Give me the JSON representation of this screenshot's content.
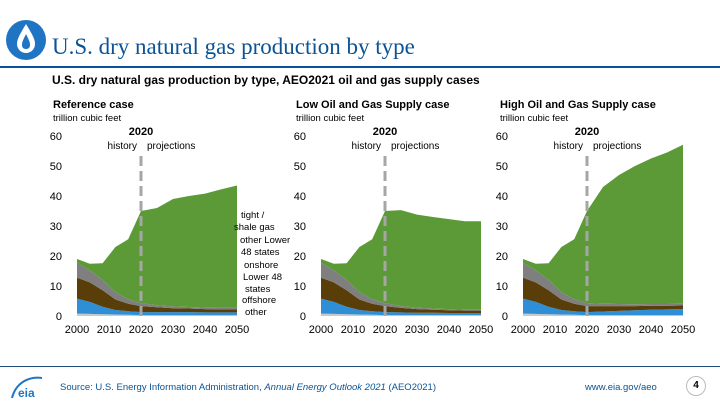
{
  "header": {
    "title": "U.S. dry natural gas production by type",
    "subtitle": "U.S. dry natural gas production by type, AEO2021 oil and gas supply cases"
  },
  "footer": {
    "source_prefix": "Source: U.S. Energy Information Administration, ",
    "source_italic": "Annual Energy Outlook 2021",
    "source_suffix": " (AEO2021)",
    "site": "www.eia.gov/aeo",
    "page": "4"
  },
  "colors": {
    "title": "#0b5394",
    "tight_shale": "#5b9a36",
    "other_lower48": "#7f7f7f",
    "onshore": "#5a3e0a",
    "offshore": "#2f8fd6",
    "other": "#c9c9c9",
    "divider": "#a6a6a6"
  },
  "legend": {
    "tight_shale": "tight / shale gas",
    "other_lower48": "other Lower 48 states onshore",
    "onshore_lower48": "Lower 48 states offshore",
    "other": "other"
  },
  "chart_data": [
    {
      "type": "area",
      "title": "Reference case",
      "ylabel": "trillion cubic feet",
      "ylim": [
        0,
        60
      ],
      "yticks": [
        "0",
        "10",
        "20",
        "30",
        "40",
        "50",
        "60"
      ],
      "xticks": [
        "2000",
        "2010",
        "2020",
        "2030",
        "2040",
        "2050"
      ],
      "divider_year": "2020",
      "history_label": "history",
      "projections_label": "projections",
      "x": [
        2000,
        2004,
        2008,
        2012,
        2016,
        2020,
        2025,
        2030,
        2035,
        2040,
        2045,
        2050
      ],
      "series": [
        {
          "key": "other",
          "values": [
            0.8,
            0.7,
            0.6,
            0.5,
            0.4,
            0.3,
            0.3,
            0.3,
            0.3,
            0.3,
            0.3,
            0.3
          ]
        },
        {
          "key": "offshore",
          "values": [
            5.0,
            4.0,
            2.5,
            1.5,
            1.2,
            1.0,
            1.0,
            1.0,
            1.0,
            0.9,
            0.9,
            0.9
          ]
        },
        {
          "key": "onshore",
          "values": [
            7.0,
            6.5,
            5.5,
            3.5,
            2.5,
            2.0,
            1.6,
            1.3,
            1.2,
            1.1,
            1.0,
            1.0
          ]
        },
        {
          "key": "other_lower48",
          "values": [
            5.0,
            4.0,
            3.5,
            2.5,
            1.5,
            1.0,
            0.7,
            0.6,
            0.5,
            0.5,
            0.5,
            0.5
          ]
        },
        {
          "key": "tight_shale",
          "values": [
            1.2,
            2.2,
            5.5,
            15.0,
            20.0,
            30.7,
            32.4,
            35.8,
            37.0,
            38.0,
            39.5,
            40.8
          ]
        }
      ]
    },
    {
      "type": "area",
      "title": "Low Oil and Gas Supply case",
      "ylabel": "trillion cubic feet",
      "ylim": [
        0,
        60
      ],
      "yticks": [
        "0",
        "10",
        "20",
        "30",
        "40",
        "50",
        "60"
      ],
      "xticks": [
        "2000",
        "2010",
        "2020",
        "2030",
        "2040",
        "2050"
      ],
      "divider_year": "2020",
      "history_label": "history",
      "projections_label": "projections",
      "x": [
        2000,
        2004,
        2008,
        2012,
        2016,
        2020,
        2025,
        2030,
        2035,
        2040,
        2045,
        2050
      ],
      "series": [
        {
          "key": "other",
          "values": [
            0.8,
            0.7,
            0.6,
            0.5,
            0.4,
            0.3,
            0.3,
            0.3,
            0.3,
            0.3,
            0.3,
            0.3
          ]
        },
        {
          "key": "offshore",
          "values": [
            5.0,
            4.0,
            2.5,
            1.5,
            1.2,
            1.0,
            0.9,
            0.8,
            0.8,
            0.7,
            0.7,
            0.7
          ]
        },
        {
          "key": "onshore",
          "values": [
            7.0,
            6.5,
            5.5,
            3.5,
            2.5,
            2.0,
            1.5,
            1.2,
            1.0,
            0.9,
            0.8,
            0.8
          ]
        },
        {
          "key": "other_lower48",
          "values": [
            5.0,
            4.0,
            3.5,
            2.5,
            1.5,
            1.0,
            0.6,
            0.5,
            0.4,
            0.4,
            0.3,
            0.3
          ]
        },
        {
          "key": "tight_shale",
          "values": [
            1.2,
            2.2,
            5.5,
            15.0,
            20.0,
            30.7,
            32.0,
            31.0,
            30.5,
            30.0,
            29.5,
            29.5
          ]
        }
      ]
    },
    {
      "type": "area",
      "title": "High Oil and Gas Supply case",
      "ylabel": "trillion cubic feet",
      "ylim": [
        0,
        60
      ],
      "yticks": [
        "0",
        "10",
        "20",
        "30",
        "40",
        "50",
        "60"
      ],
      "xticks": [
        "2000",
        "2010",
        "2020",
        "2030",
        "2040",
        "2050"
      ],
      "divider_year": "2020",
      "history_label": "history",
      "projections_label": "projections",
      "x": [
        2000,
        2004,
        2008,
        2012,
        2016,
        2020,
        2025,
        2030,
        2035,
        2040,
        2045,
        2050
      ],
      "series": [
        {
          "key": "other",
          "values": [
            0.8,
            0.7,
            0.6,
            0.5,
            0.4,
            0.3,
            0.3,
            0.3,
            0.3,
            0.3,
            0.3,
            0.3
          ]
        },
        {
          "key": "offshore",
          "values": [
            5.0,
            4.0,
            2.5,
            1.5,
            1.2,
            1.0,
            1.2,
            1.4,
            1.6,
            1.8,
            1.9,
            2.0
          ]
        },
        {
          "key": "onshore",
          "values": [
            7.0,
            6.5,
            5.5,
            3.5,
            2.5,
            2.0,
            1.8,
            1.6,
            1.4,
            1.3,
            1.2,
            1.2
          ]
        },
        {
          "key": "other_lower48",
          "values": [
            5.0,
            4.0,
            3.5,
            2.5,
            1.5,
            1.0,
            0.8,
            0.7,
            0.6,
            0.6,
            0.6,
            0.6
          ]
        },
        {
          "key": "tight_shale",
          "values": [
            1.2,
            2.2,
            5.5,
            15.0,
            20.0,
            30.7,
            38.9,
            43.0,
            46.1,
            48.5,
            50.5,
            53.0
          ]
        }
      ]
    }
  ]
}
